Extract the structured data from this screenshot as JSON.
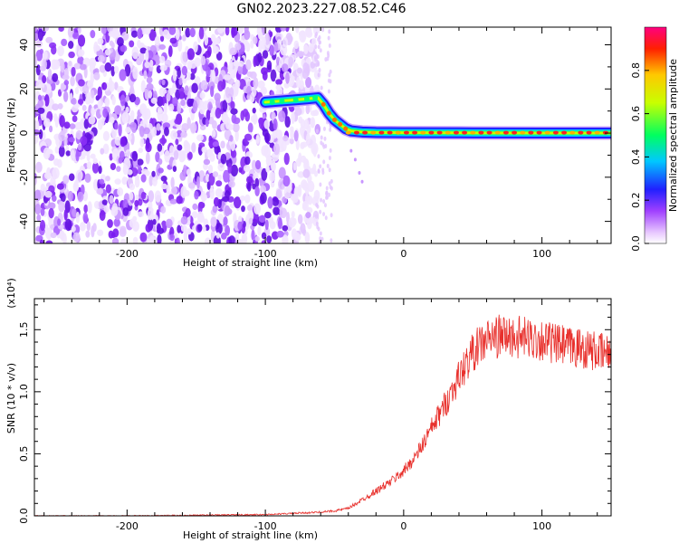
{
  "figure_title": "GN02.2023.227.08.52.C46",
  "colors": {
    "snr_line": "#e8302c",
    "axis": "#000000",
    "scatter_purple": "#7a1cf0"
  },
  "chart_data": [
    {
      "type": "heatmap",
      "title": "",
      "xlabel": "Height of straight line (km)",
      "ylabel": "Frequency (Hz)",
      "xlim": [
        -267,
        150
      ],
      "ylim": [
        -50,
        48
      ],
      "xticks": [
        -200,
        -100,
        0,
        100
      ],
      "yticks": [
        -40,
        -20,
        0,
        20,
        40
      ],
      "grid": false,
      "noise_region": {
        "x": [
          -267,
          -62
        ],
        "y": [
          -50,
          48
        ],
        "description_level": 0.3
      },
      "ridge": [
        {
          "x": -100,
          "y": 14
        },
        {
          "x": -90,
          "y": 14.5
        },
        {
          "x": -80,
          "y": 15
        },
        {
          "x": -70,
          "y": 15.5
        },
        {
          "x": -62,
          "y": 16
        },
        {
          "x": -58,
          "y": 13
        },
        {
          "x": -54,
          "y": 9
        },
        {
          "x": -50,
          "y": 6
        },
        {
          "x": -46,
          "y": 4
        },
        {
          "x": -42,
          "y": 2
        },
        {
          "x": -38,
          "y": 1
        },
        {
          "x": -30,
          "y": 0.5
        },
        {
          "x": -20,
          "y": 0.3
        },
        {
          "x": 0,
          "y": 0.2
        },
        {
          "x": 50,
          "y": 0.1
        },
        {
          "x": 100,
          "y": 0
        },
        {
          "x": 150,
          "y": 0
        }
      ],
      "colorbar": {
        "label": "Normalized spectral amplitude",
        "range": [
          0,
          1
        ],
        "ticks": [
          "0.0",
          "0.2",
          "0.4",
          "0.6",
          "0.8"
        ]
      }
    },
    {
      "type": "line",
      "title": "",
      "xlabel": "Height of straight line (km)",
      "ylabel": "SNR (10 * v/v)",
      "y_multiplier": "(x10⁴)",
      "xlim": [
        -267,
        150
      ],
      "ylim": [
        0,
        1.75
      ],
      "xticks": [
        -200,
        -100,
        0,
        100
      ],
      "yticks": [
        "0.0",
        "0.5",
        "1.0",
        "1.5"
      ],
      "grid": false,
      "series": [
        {
          "x": [
            -267,
            -200,
            -150,
            -100,
            -80,
            -60,
            -50,
            -40,
            -30,
            -20,
            -10,
            0,
            10,
            20,
            30,
            40,
            50,
            60,
            70,
            80,
            90,
            100,
            110,
            120,
            130,
            140,
            150
          ],
          "values": [
            0.0,
            0.0,
            0.005,
            0.01,
            0.02,
            0.03,
            0.04,
            0.06,
            0.13,
            0.2,
            0.27,
            0.36,
            0.5,
            0.7,
            0.9,
            1.12,
            1.32,
            1.42,
            1.45,
            1.44,
            1.43,
            1.42,
            1.38,
            1.36,
            1.35,
            1.32,
            1.3
          ]
        }
      ]
    }
  ]
}
